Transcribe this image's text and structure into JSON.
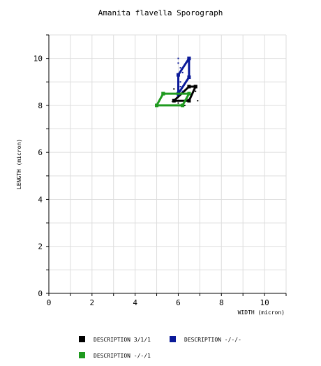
{
  "chart_data": {
    "type": "line",
    "title": "Amanita flavella Sporograph",
    "xlabel": "WIDTH (micron)",
    "ylabel": "LENGTH (micron)",
    "xlim": [
      0,
      11
    ],
    "ylim": [
      0,
      11
    ],
    "x_ticks": [
      "0",
      "2",
      "4",
      "6",
      "8",
      "10"
    ],
    "y_ticks": [
      "0",
      "2",
      "4",
      "6",
      "8",
      "10"
    ],
    "grid": true,
    "legend_position": "bottom",
    "series": [
      {
        "name": "DESCRIPTION 3/1/1",
        "color": "#000000",
        "points": [
          [
            6.8,
            8.8
          ],
          [
            6.5,
            8.2
          ],
          [
            5.8,
            8.2
          ],
          [
            6.5,
            8.8
          ],
          [
            6.8,
            8.8
          ]
        ],
        "scatter": [
          [
            5.8,
            8.7
          ],
          [
            6.0,
            8.1
          ],
          [
            6.3,
            8.0
          ],
          [
            6.8,
            8.6
          ],
          [
            6.9,
            8.2
          ]
        ]
      },
      {
        "name": "DESCRIPTION -/-/-",
        "color": "#0b1a99",
        "points": [
          [
            6.5,
            10.0
          ],
          [
            6.0,
            9.3
          ],
          [
            6.0,
            8.5
          ],
          [
            6.5,
            9.2
          ],
          [
            6.5,
            10.0
          ]
        ],
        "scatter": [
          [
            6.0,
            10.0
          ],
          [
            6.0,
            9.8
          ],
          [
            6.1,
            9.6
          ],
          [
            6.2,
            9.4
          ],
          [
            6.1,
            9.0
          ],
          [
            6.1,
            8.8
          ],
          [
            6.2,
            8.6
          ]
        ]
      },
      {
        "name": "DESCRIPTION -/-/1",
        "color": "#1f9a1f",
        "points": [
          [
            5.3,
            8.5
          ],
          [
            6.5,
            8.5
          ],
          [
            6.2,
            8.0
          ],
          [
            5.0,
            8.0
          ],
          [
            5.3,
            8.5
          ]
        ],
        "scatter": []
      }
    ]
  }
}
